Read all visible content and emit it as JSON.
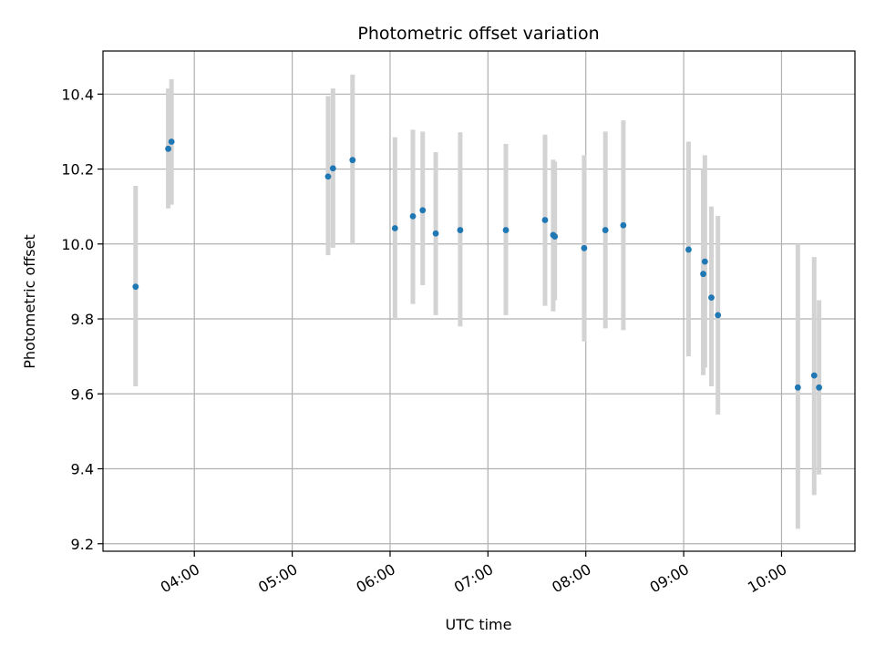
{
  "chart_data": {
    "type": "scatter",
    "title": "Photometric offset variation",
    "xlabel": "UTC time",
    "ylabel": "Photometric offset",
    "x_ticks": [
      "04:00",
      "05:00",
      "06:00",
      "07:00",
      "08:00",
      "09:00",
      "10:00"
    ],
    "y_ticks": [
      "9.2",
      "9.4",
      "9.6",
      "9.8",
      "10.0",
      "10.2",
      "10.4"
    ],
    "xlim": [
      "03:04",
      "10:45"
    ],
    "ylim": [
      9.18,
      10.515
    ],
    "grid": true,
    "errorbar_color": "#d3d3d3",
    "marker_color": "#1f77b4",
    "points": [
      {
        "x": "03:24",
        "y": 9.886,
        "ymin": 9.62,
        "ymax": 10.155
      },
      {
        "x": "03:44",
        "y": 10.254,
        "ymin": 10.095,
        "ymax": 10.415
      },
      {
        "x": "03:46",
        "y": 10.273,
        "ymin": 10.105,
        "ymax": 10.44
      },
      {
        "x": "05:22",
        "y": 10.18,
        "ymin": 9.97,
        "ymax": 10.395
      },
      {
        "x": "05:25",
        "y": 10.202,
        "ymin": 9.99,
        "ymax": 10.415
      },
      {
        "x": "05:37",
        "y": 10.224,
        "ymin": 10.0,
        "ymax": 10.452
      },
      {
        "x": "06:03",
        "y": 10.042,
        "ymin": 9.8,
        "ymax": 10.285
      },
      {
        "x": "06:14",
        "y": 10.074,
        "ymin": 9.84,
        "ymax": 10.305
      },
      {
        "x": "06:20",
        "y": 10.09,
        "ymin": 9.89,
        "ymax": 10.3
      },
      {
        "x": "06:28",
        "y": 10.028,
        "ymin": 9.81,
        "ymax": 10.245
      },
      {
        "x": "06:43",
        "y": 10.037,
        "ymin": 9.78,
        "ymax": 10.298
      },
      {
        "x": "07:11",
        "y": 10.037,
        "ymin": 9.81,
        "ymax": 10.267
      },
      {
        "x": "07:35",
        "y": 10.064,
        "ymin": 9.835,
        "ymax": 10.292
      },
      {
        "x": "07:40",
        "y": 10.024,
        "ymin": 9.82,
        "ymax": 10.225
      },
      {
        "x": "07:41",
        "y": 10.02,
        "ymin": 9.85,
        "ymax": 10.22
      },
      {
        "x": "07:59",
        "y": 9.989,
        "ymin": 9.74,
        "ymax": 10.237
      },
      {
        "x": "08:12",
        "y": 10.037,
        "ymin": 9.775,
        "ymax": 10.3
      },
      {
        "x": "08:23",
        "y": 10.05,
        "ymin": 9.77,
        "ymax": 10.33
      },
      {
        "x": "09:03",
        "y": 9.985,
        "ymin": 9.7,
        "ymax": 10.273
      },
      {
        "x": "09:12",
        "y": 9.92,
        "ymin": 9.65,
        "ymax": 10.2
      },
      {
        "x": "09:13",
        "y": 9.953,
        "ymin": 9.67,
        "ymax": 10.237
      },
      {
        "x": "09:17",
        "y": 9.857,
        "ymin": 9.62,
        "ymax": 10.1
      },
      {
        "x": "09:21",
        "y": 9.81,
        "ymin": 9.545,
        "ymax": 10.075
      },
      {
        "x": "10:10",
        "y": 9.617,
        "ymin": 9.24,
        "ymax": 10.0
      },
      {
        "x": "10:20",
        "y": 9.649,
        "ymin": 9.33,
        "ymax": 9.965
      },
      {
        "x": "10:23",
        "y": 9.617,
        "ymin": 9.385,
        "ymax": 9.85
      }
    ]
  }
}
